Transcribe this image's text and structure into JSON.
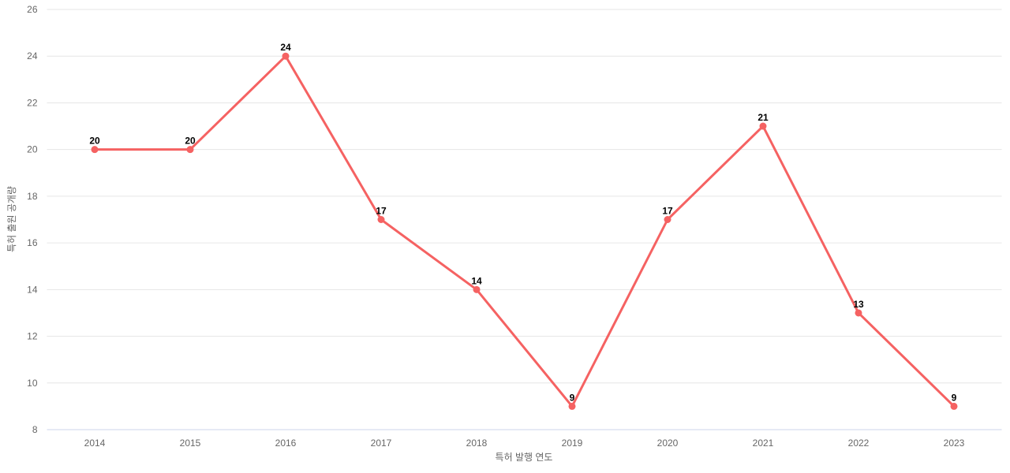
{
  "chart_data": {
    "type": "line",
    "title": "",
    "xlabel": "특허 발행 연도",
    "ylabel": "특허 출원 공개량",
    "categories": [
      "2014",
      "2015",
      "2016",
      "2017",
      "2018",
      "2019",
      "2020",
      "2021",
      "2022",
      "2023"
    ],
    "series": [
      {
        "name": "특허 출원 공개량",
        "values": [
          20,
          20,
          24,
          17,
          14,
          9,
          17,
          21,
          13,
          9
        ]
      }
    ],
    "ylim": [
      8,
      26
    ],
    "ytick_step": 2,
    "yticks": [
      8,
      10,
      12,
      14,
      16,
      18,
      20,
      22,
      24,
      26
    ],
    "grid": true,
    "legend_position": "none",
    "data_labels": true,
    "colors": {
      "line": "#f56262",
      "marker": "#f56262",
      "gridline": "#e6e6e6",
      "axis_line": "#ccd6eb",
      "axis_text": "#666666",
      "data_label": "#000000",
      "background": "#ffffff"
    }
  }
}
